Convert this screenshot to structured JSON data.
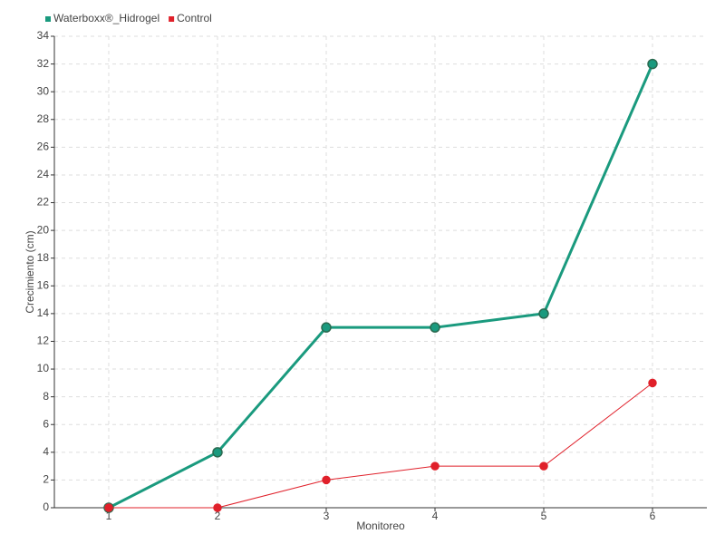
{
  "chart_data": {
    "type": "line",
    "x_label": "Monitoreo",
    "y_label": "Crecimiento (cm)",
    "x": [
      1,
      2,
      3,
      4,
      5,
      6
    ],
    "xlim": [
      0.5,
      6.5
    ],
    "xticks": [
      1,
      2,
      3,
      4,
      5,
      6
    ],
    "ylim": [
      0,
      34
    ],
    "yticks": [
      0,
      2,
      4,
      6,
      8,
      10,
      12,
      14,
      16,
      18,
      20,
      22,
      24,
      26,
      28,
      30,
      32,
      34
    ],
    "grid": true,
    "legend": "top-left",
    "series": [
      {
        "name": "Waterboxx®_Hidrogel",
        "color": "#1a9a7e",
        "values": [
          0,
          4,
          13,
          13,
          14,
          32
        ]
      },
      {
        "name": "Control",
        "color": "#e0202a",
        "values": [
          0,
          0,
          2,
          3,
          3,
          9
        ]
      }
    ]
  }
}
